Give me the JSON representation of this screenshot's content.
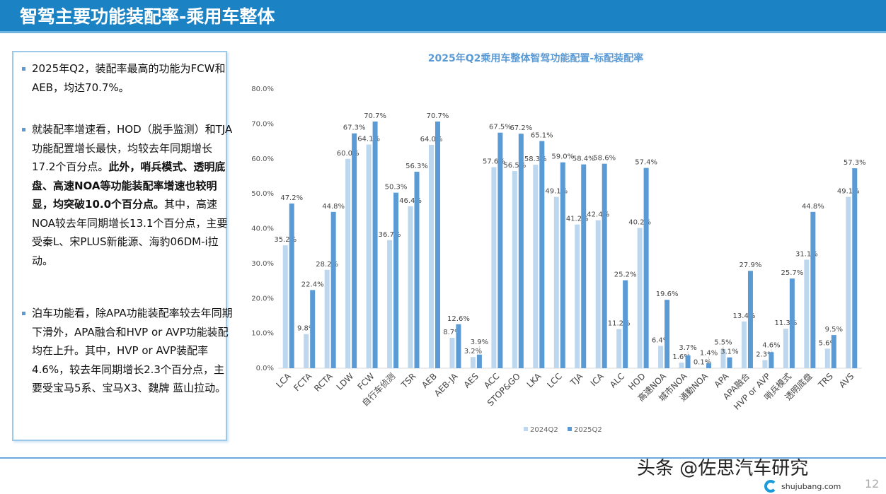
{
  "header": {
    "title": "智驾主要功能装配率-乘用车整体"
  },
  "panel": {
    "bullets": [
      {
        "segments": [
          {
            "text": "2025年Q2，装配率最高的功能为FCW和AEB，均达70.7%。",
            "bold": false
          }
        ]
      },
      {
        "segments": [
          {
            "text": "就装配率增速看，HOD（脱手监测）和TJA功能配置增长最快，均较去年同期增长17.2个百分点。",
            "bold": false
          },
          {
            "text": "此外，哨兵模式、透明底盘、高速NOA等功能装配率增速也较明显，均突破10.0个百分点。",
            "bold": true
          },
          {
            "text": "其中，高速NOA较去年同期增长13.1个百分点，主要受秦L、宋PLUS新能源、海豹06DM-i拉动。",
            "bold": false
          }
        ]
      },
      {
        "segments": [
          {
            "text": "泊车功能看，除APA功能装配率较去年同期下滑外，APA融合和HVP or AVP功能装配均在上升。其中，HVP or AVP装配率4.6%，较去年同期增长2.3个百分点，主要受宝马5系、宝马X3、魏牌 蓝山拉动。",
            "bold": false
          }
        ]
      }
    ]
  },
  "chart_data": {
    "type": "bar",
    "title": "2025年Q2乘用车整体智驾功能配置-标配装配率",
    "categories": [
      "LCA",
      "FCTA",
      "RCTA",
      "LDW",
      "FCW",
      "自行车侦测",
      "TSR",
      "AEB",
      "AEB-JA",
      "AES",
      "ACC",
      "STOP&GO",
      "LKA",
      "LCC",
      "TJA",
      "ICA",
      "ALC",
      "HOD",
      "高速NOA",
      "城市NOA",
      "通勤NOA",
      "APA",
      "APA融合",
      "HVP or AVP",
      "哨兵模式",
      "透明底盘",
      "TRS",
      "AVS"
    ],
    "series": [
      {
        "name": "2024Q2",
        "color": "#bdd7ee",
        "values": [
          35.2,
          9.8,
          28.2,
          60.0,
          64.1,
          36.7,
          46.4,
          64.0,
          8.7,
          3.2,
          57.6,
          56.5,
          58.3,
          49.1,
          41.2,
          42.4,
          11.2,
          40.2,
          6.4,
          1.6,
          0.1,
          5.5,
          13.4,
          2.3,
          11.3,
          31.1,
          5.6,
          49.1
        ]
      },
      {
        "name": "2025Q2",
        "color": "#5b9bd5",
        "values": [
          47.2,
          22.4,
          44.8,
          67.3,
          70.7,
          50.3,
          56.3,
          70.7,
          12.6,
          3.9,
          67.5,
          67.2,
          65.1,
          59.0,
          58.4,
          58.6,
          25.2,
          57.4,
          19.6,
          3.7,
          1.4,
          3.1,
          27.9,
          4.6,
          25.7,
          44.8,
          9.5,
          57.3
        ]
      }
    ],
    "yticks": [
      "0.0%",
      "10.0%",
      "20.0%",
      "30.0%",
      "40.0%",
      "50.0%",
      "60.0%",
      "70.0%",
      "80.0%"
    ],
    "ylim": [
      0,
      80
    ],
    "legend": "bottom",
    "grid": false
  },
  "footer": {
    "watermark": "头条 @佐思汽车研究",
    "site": "shujubang.com",
    "page": "12"
  }
}
